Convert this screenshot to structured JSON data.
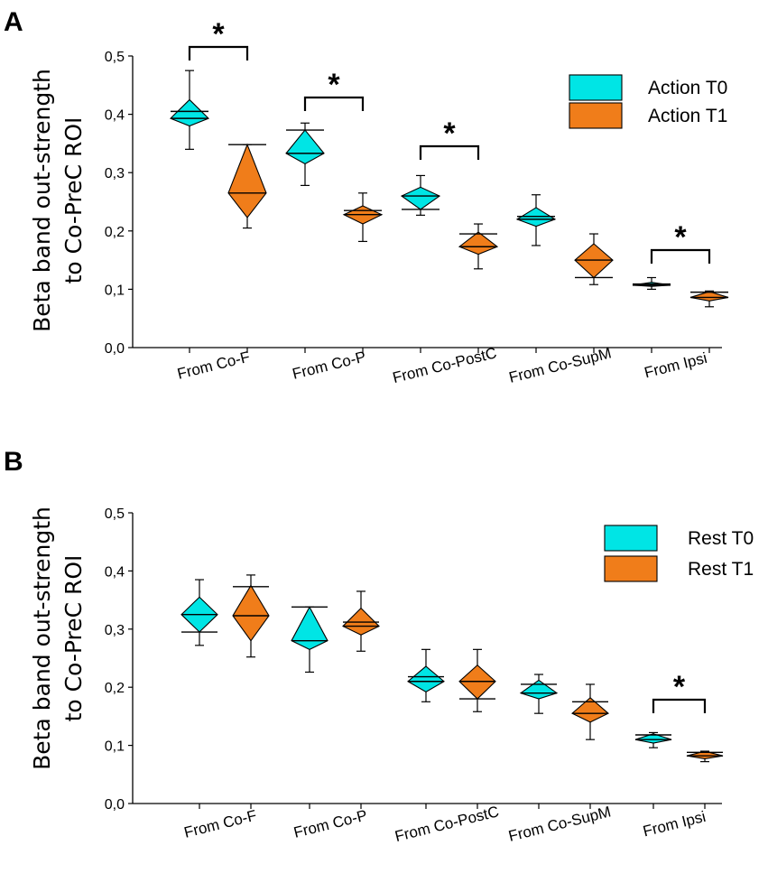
{
  "colors": {
    "t0": "#00e5e5",
    "t1": "#f07d1a",
    "stroke": "#000000"
  },
  "chart_data": [
    {
      "panel": "A",
      "type": "box-triangle",
      "ylabel": [
        "Beta band out-strength",
        "to Co-PreC ROI"
      ],
      "ylim": [
        0,
        0.5
      ],
      "yticks": [
        "0,0",
        "0,1",
        "0,2",
        "0,3",
        "0,4",
        "0,5"
      ],
      "categories": [
        "From Co-F",
        "From Co-P",
        "From Co-PostC",
        "From Co-SupM",
        "From Ipsi"
      ],
      "series": [
        {
          "name": "Action T0",
          "key": "t0",
          "groups": [
            {
              "q1": 0.38,
              "q3": 0.425,
              "median": 0.393,
              "mean": 0.405,
              "min": 0.34,
              "max": 0.475
            },
            {
              "q1": 0.315,
              "q3": 0.373,
              "median": 0.333,
              "mean": 0.373,
              "min": 0.278,
              "max": 0.385
            },
            {
              "q1": 0.237,
              "q3": 0.275,
              "median": 0.26,
              "mean": 0.237,
              "min": 0.227,
              "max": 0.295
            },
            {
              "q1": 0.208,
              "q3": 0.24,
              "median": 0.22,
              "mean": 0.225,
              "min": 0.175,
              "max": 0.262
            },
            {
              "q1": 0.105,
              "q3": 0.112,
              "median": 0.107,
              "mean": 0.109,
              "min": 0.1,
              "max": 0.12
            }
          ]
        },
        {
          "name": "Action T1",
          "key": "t1",
          "groups": [
            {
              "q1": 0.223,
              "q3": 0.348,
              "median": 0.265,
              "mean": 0.348,
              "min": 0.205,
              "max": 0.348
            },
            {
              "q1": 0.212,
              "q3": 0.243,
              "median": 0.228,
              "mean": 0.235,
              "min": 0.182,
              "max": 0.265
            },
            {
              "q1": 0.16,
              "q3": 0.198,
              "median": 0.173,
              "mean": 0.195,
              "min": 0.135,
              "max": 0.212
            },
            {
              "q1": 0.12,
              "q3": 0.178,
              "median": 0.15,
              "mean": 0.12,
              "min": 0.108,
              "max": 0.195
            },
            {
              "q1": 0.08,
              "q3": 0.096,
              "median": 0.086,
              "mean": 0.095,
              "min": 0.07,
              "max": 0.097
            }
          ]
        }
      ],
      "significance": [
        {
          "category": 0,
          "label": "*"
        },
        {
          "category": 1,
          "label": "*"
        },
        {
          "category": 2,
          "label": "*"
        },
        {
          "category": 4,
          "label": "*"
        }
      ],
      "legend": [
        "Action T0",
        "Action T1"
      ],
      "legend_position": "top-right"
    },
    {
      "panel": "B",
      "type": "box-triangle",
      "ylabel": [
        "Beta band out-strength",
        "to Co-PreC ROI"
      ],
      "ylim": [
        0,
        0.5
      ],
      "yticks": [
        "0,0",
        "0,1",
        "0,2",
        "0,3",
        "0,4",
        "0,5"
      ],
      "categories": [
        "From Co-F",
        "From Co-P",
        "From Co-PostC",
        "From Co-SupM",
        "From Ipsi"
      ],
      "series": [
        {
          "name": "Rest T0",
          "key": "t0",
          "groups": [
            {
              "q1": 0.295,
              "q3": 0.355,
              "median": 0.325,
              "mean": 0.295,
              "min": 0.272,
              "max": 0.385
            },
            {
              "q1": 0.265,
              "q3": 0.338,
              "median": 0.28,
              "mean": 0.338,
              "min": 0.226,
              "max": 0.338
            },
            {
              "q1": 0.192,
              "q3": 0.236,
              "median": 0.21,
              "mean": 0.218,
              "min": 0.175,
              "max": 0.265
            },
            {
              "q1": 0.18,
              "q3": 0.212,
              "median": 0.19,
              "mean": 0.205,
              "min": 0.155,
              "max": 0.222
            },
            {
              "q1": 0.104,
              "q3": 0.12,
              "median": 0.11,
              "mean": 0.118,
              "min": 0.096,
              "max": 0.122
            }
          ]
        },
        {
          "name": "Rest T1",
          "key": "t1",
          "groups": [
            {
              "q1": 0.28,
              "q3": 0.375,
              "median": 0.323,
              "mean": 0.373,
              "min": 0.252,
              "max": 0.393
            },
            {
              "q1": 0.29,
              "q3": 0.336,
              "median": 0.305,
              "mean": 0.312,
              "min": 0.262,
              "max": 0.365
            },
            {
              "q1": 0.18,
              "q3": 0.238,
              "median": 0.21,
              "mean": 0.18,
              "min": 0.158,
              "max": 0.265
            },
            {
              "q1": 0.14,
              "q3": 0.182,
              "median": 0.155,
              "mean": 0.175,
              "min": 0.11,
              "max": 0.205
            },
            {
              "q1": 0.077,
              "q3": 0.09,
              "median": 0.082,
              "mean": 0.088,
              "min": 0.072,
              "max": 0.09
            }
          ]
        }
      ],
      "significance": [
        {
          "category": 4,
          "label": "*"
        }
      ],
      "legend": [
        "Rest T0",
        "Rest T1"
      ],
      "legend_position": "top-right"
    }
  ]
}
